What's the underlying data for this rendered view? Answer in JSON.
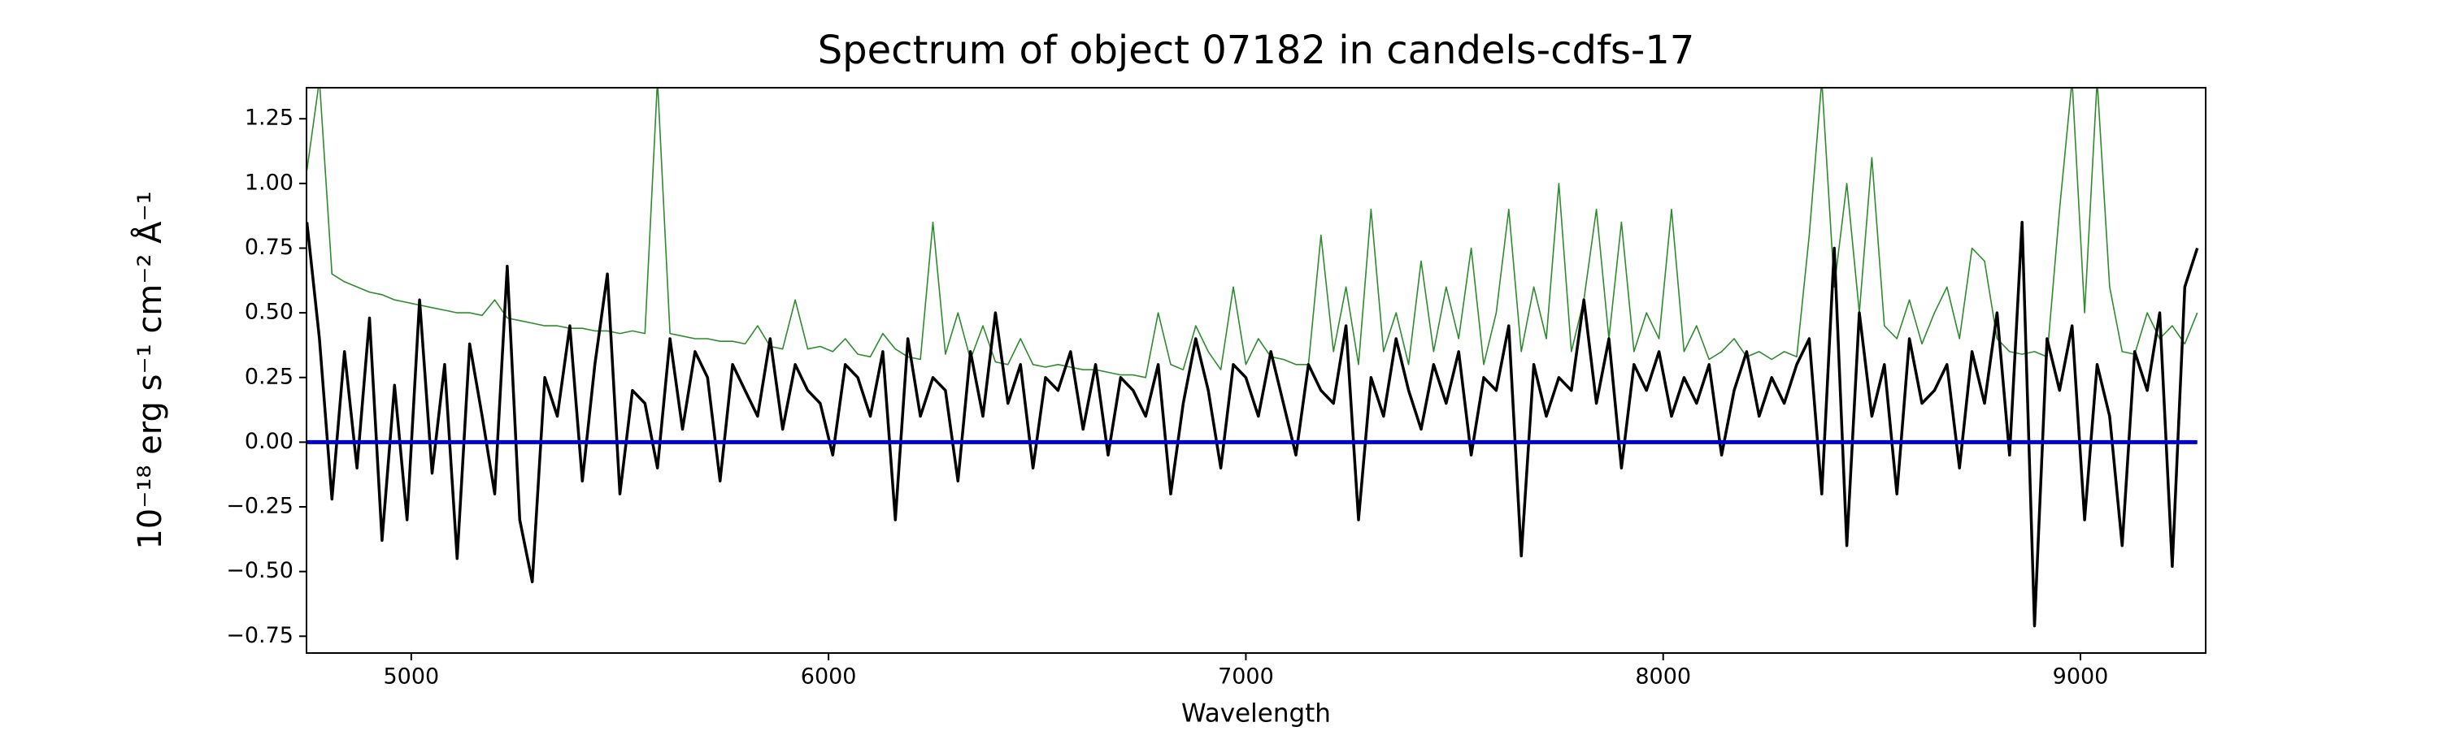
{
  "chart_data": {
    "type": "line",
    "title": "Spectrum of object 07182 in candels-cdfs-17",
    "xlabel": "Wavelength",
    "ylabel": "10⁻¹⁸ erg s⁻¹ cm⁻² Å⁻¹",
    "xlim": [
      4749,
      9300
    ],
    "ylim": [
      -0.815,
      1.37
    ],
    "xticks": [
      5000,
      6000,
      7000,
      8000,
      9000
    ],
    "yticks": [
      {
        "value": -0.75,
        "label": "−0.75"
      },
      {
        "value": -0.5,
        "label": "−0.50"
      },
      {
        "value": -0.25,
        "label": "−0.25"
      },
      {
        "value": 0,
        "label": "0.00"
      },
      0.25,
      {
        "value": 0.5,
        "label": "0.50"
      },
      0.75,
      {
        "value": 1,
        "label": "1.00"
      },
      1.25
    ],
    "grid": false,
    "x": [
      4750,
      4780,
      4810,
      4840,
      4870,
      4900,
      4930,
      4960,
      4990,
      5020,
      5050,
      5080,
      5110,
      5140,
      5170,
      5200,
      5230,
      5260,
      5290,
      5320,
      5350,
      5380,
      5410,
      5440,
      5470,
      5500,
      5530,
      5560,
      5590,
      5620,
      5650,
      5680,
      5710,
      5740,
      5770,
      5800,
      5830,
      5860,
      5890,
      5920,
      5950,
      5980,
      6010,
      6040,
      6070,
      6100,
      6130,
      6160,
      6190,
      6220,
      6250,
      6280,
      6310,
      6340,
      6370,
      6400,
      6430,
      6460,
      6490,
      6520,
      6550,
      6580,
      6610,
      6640,
      6670,
      6700,
      6730,
      6760,
      6790,
      6820,
      6850,
      6880,
      6910,
      6940,
      6970,
      7000,
      7030,
      7060,
      7090,
      7120,
      7150,
      7180,
      7210,
      7240,
      7270,
      7300,
      7330,
      7360,
      7390,
      7420,
      7450,
      7480,
      7510,
      7540,
      7570,
      7600,
      7630,
      7660,
      7690,
      7720,
      7750,
      7780,
      7810,
      7840,
      7870,
      7900,
      7930,
      7960,
      7990,
      8020,
      8050,
      8080,
      8110,
      8140,
      8170,
      8200,
      8230,
      8260,
      8290,
      8320,
      8350,
      8380,
      8410,
      8440,
      8470,
      8500,
      8530,
      8560,
      8590,
      8620,
      8650,
      8680,
      8710,
      8740,
      8770,
      8800,
      8830,
      8860,
      8890,
      8920,
      8950,
      8980,
      9010,
      9040,
      9070,
      9100,
      9130,
      9160,
      9190,
      9220,
      9250,
      9280
    ],
    "series": [
      {
        "color": "#2e8b2e",
        "width": 1.6,
        "values": [
          1.05,
          1.4,
          0.65,
          0.62,
          0.6,
          0.58,
          0.57,
          0.55,
          0.54,
          0.53,
          0.52,
          0.51,
          0.5,
          0.5,
          0.49,
          0.55,
          0.48,
          0.47,
          0.46,
          0.45,
          0.45,
          0.44,
          0.44,
          0.43,
          0.43,
          0.42,
          0.43,
          0.42,
          1.4,
          0.42,
          0.41,
          0.4,
          0.4,
          0.39,
          0.39,
          0.38,
          0.45,
          0.37,
          0.36,
          0.55,
          0.36,
          0.37,
          0.35,
          0.4,
          0.34,
          0.33,
          0.42,
          0.36,
          0.33,
          0.32,
          0.85,
          0.34,
          0.5,
          0.32,
          0.45,
          0.31,
          0.3,
          0.4,
          0.3,
          0.29,
          0.3,
          0.29,
          0.28,
          0.28,
          0.27,
          0.26,
          0.26,
          0.25,
          0.5,
          0.3,
          0.28,
          0.45,
          0.35,
          0.28,
          0.6,
          0.3,
          0.4,
          0.33,
          0.32,
          0.3,
          0.3,
          0.8,
          0.35,
          0.6,
          0.3,
          0.9,
          0.35,
          0.5,
          0.3,
          0.7,
          0.35,
          0.6,
          0.4,
          0.75,
          0.3,
          0.5,
          0.9,
          0.35,
          0.6,
          0.4,
          1.0,
          0.35,
          0.55,
          0.9,
          0.4,
          0.85,
          0.35,
          0.5,
          0.4,
          0.9,
          0.35,
          0.45,
          0.32,
          0.35,
          0.4,
          0.33,
          0.35,
          0.32,
          0.35,
          0.33,
          0.8,
          1.4,
          0.6,
          1.0,
          0.5,
          1.1,
          0.45,
          0.4,
          0.55,
          0.38,
          0.5,
          0.6,
          0.4,
          0.75,
          0.7,
          0.4,
          0.35,
          0.34,
          0.35,
          0.33,
          0.9,
          1.4,
          0.5,
          1.4,
          0.6,
          0.35,
          0.34,
          0.5,
          0.4,
          0.45,
          0.38,
          0.5
        ]
      },
      {
        "color": "#000000",
        "width": 3.5,
        "values": [
          0.85,
          0.4,
          -0.22,
          0.35,
          -0.1,
          0.48,
          -0.38,
          0.22,
          -0.3,
          0.55,
          -0.12,
          0.3,
          -0.45,
          0.38,
          0.1,
          -0.2,
          0.68,
          -0.3,
          -0.54,
          0.25,
          0.1,
          0.45,
          -0.15,
          0.3,
          0.65,
          -0.2,
          0.2,
          0.15,
          -0.1,
          0.4,
          0.05,
          0.35,
          0.25,
          -0.15,
          0.3,
          0.2,
          0.1,
          0.4,
          0.05,
          0.3,
          0.2,
          0.15,
          -0.05,
          0.3,
          0.25,
          0.1,
          0.35,
          -0.3,
          0.4,
          0.1,
          0.25,
          0.2,
          -0.15,
          0.35,
          0.1,
          0.5,
          0.15,
          0.3,
          -0.1,
          0.25,
          0.2,
          0.35,
          0.05,
          0.3,
          -0.05,
          0.25,
          0.2,
          0.1,
          0.3,
          -0.2,
          0.15,
          0.4,
          0.2,
          -0.1,
          0.3,
          0.25,
          0.1,
          0.35,
          0.15,
          -0.05,
          0.3,
          0.2,
          0.15,
          0.45,
          -0.3,
          0.25,
          0.1,
          0.4,
          0.2,
          0.05,
          0.3,
          0.15,
          0.35,
          -0.05,
          0.25,
          0.2,
          0.45,
          -0.44,
          0.3,
          0.1,
          0.25,
          0.2,
          0.55,
          0.15,
          0.4,
          -0.1,
          0.3,
          0.2,
          0.35,
          0.1,
          0.25,
          0.15,
          0.3,
          -0.05,
          0.2,
          0.35,
          0.1,
          0.25,
          0.15,
          0.3,
          0.4,
          -0.2,
          0.75,
          -0.4,
          0.5,
          0.1,
          0.3,
          -0.2,
          0.4,
          0.15,
          0.2,
          0.3,
          -0.1,
          0.35,
          0.15,
          0.5,
          -0.05,
          0.85,
          -0.71,
          0.4,
          0.2,
          0.45,
          -0.3,
          0.3,
          0.1,
          -0.4,
          0.35,
          0.2,
          0.5,
          -0.48,
          0.6,
          0.75
        ]
      },
      {
        "color": "#0000cc",
        "width": 5,
        "values": [
          0,
          0,
          0,
          0,
          0,
          0,
          0,
          0,
          0,
          0,
          0,
          0,
          0,
          0,
          0,
          0,
          0,
          0,
          0,
          0,
          0,
          0,
          0,
          0,
          0,
          0,
          0,
          0,
          0,
          0,
          0,
          0,
          0,
          0,
          0,
          0,
          0,
          0,
          0,
          0,
          0,
          0,
          0,
          0,
          0,
          0,
          0,
          0,
          0,
          0,
          0,
          0,
          0,
          0,
          0,
          0,
          0,
          0,
          0,
          0,
          0,
          0,
          0,
          0,
          0,
          0,
          0,
          0,
          0,
          0,
          0,
          0,
          0,
          0,
          0,
          0,
          0,
          0,
          0,
          0,
          0,
          0,
          0,
          0,
          0,
          0,
          0,
          0,
          0,
          0,
          0,
          0,
          0,
          0,
          0,
          0,
          0,
          0,
          0,
          0,
          0,
          0,
          0,
          0,
          0,
          0,
          0,
          0,
          0,
          0,
          0,
          0,
          0,
          0,
          0,
          0,
          0,
          0,
          0,
          0,
          0,
          0,
          0,
          0,
          0,
          0,
          0,
          0,
          0,
          0,
          0,
          0,
          0,
          0,
          0,
          0,
          0,
          0,
          0,
          0,
          0,
          0,
          0,
          0,
          0,
          0,
          0,
          0,
          0,
          0,
          0,
          0
        ]
      }
    ]
  }
}
